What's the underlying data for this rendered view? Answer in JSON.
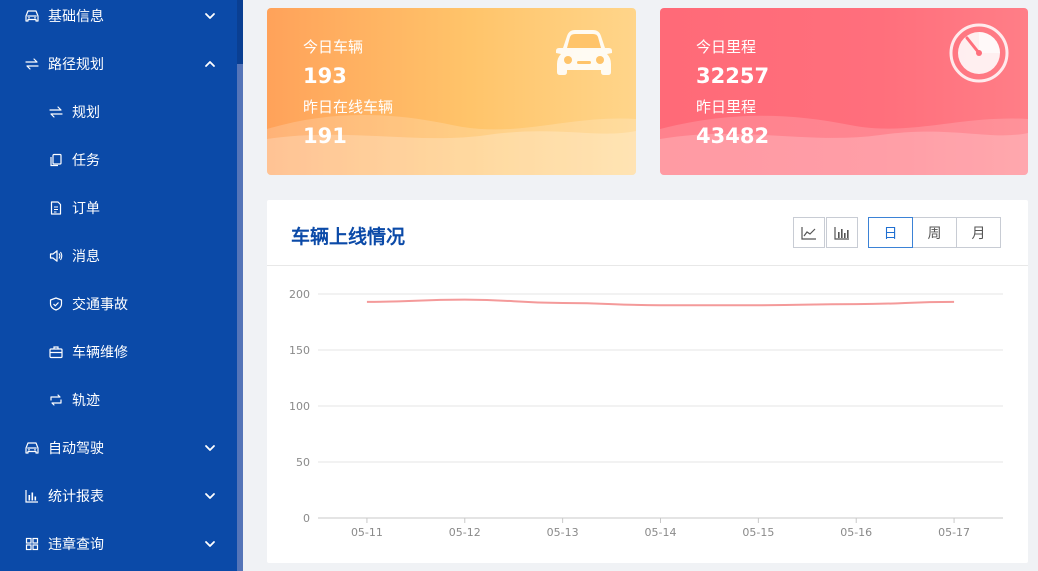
{
  "sidebar": {
    "items": [
      {
        "label": "基础信息",
        "icon": "car-icon",
        "level": 1,
        "chevron": "down"
      },
      {
        "label": "路径规划",
        "icon": "route-icon",
        "level": 1,
        "chevron": "up"
      },
      {
        "label": "规划",
        "icon": "route-icon",
        "level": 2
      },
      {
        "label": "任务",
        "icon": "copy-icon",
        "level": 2
      },
      {
        "label": "订单",
        "icon": "document-icon",
        "level": 2
      },
      {
        "label": "消息",
        "icon": "speaker-icon",
        "level": 2
      },
      {
        "label": "交通事故",
        "icon": "shield-icon",
        "level": 2
      },
      {
        "label": "车辆维修",
        "icon": "toolbox-icon",
        "level": 2
      },
      {
        "label": "轨迹",
        "icon": "loop-icon",
        "level": 2
      },
      {
        "label": "自动驾驶",
        "icon": "car-icon",
        "level": 1,
        "chevron": "down"
      },
      {
        "label": "统计报表",
        "icon": "bar-chart-icon",
        "level": 1,
        "chevron": "down"
      },
      {
        "label": "违章查询",
        "icon": "grid-icon",
        "level": 1,
        "chevron": "down"
      }
    ]
  },
  "cards": {
    "vehicles": {
      "today_label": "今日车辆",
      "today_value": "193",
      "yesterday_label": "昨日在线车辆",
      "yesterday_value": "191",
      "icon": "car-icon"
    },
    "mileage": {
      "today_label": "今日里程",
      "today_value": "32257",
      "yesterday_label": "昨日里程",
      "yesterday_value": "43482",
      "icon": "speedometer-icon"
    }
  },
  "panel": {
    "title": "车辆上线情况",
    "chart_type_buttons": [
      "line-chart-icon",
      "bar-chart-icon"
    ],
    "range_buttons": [
      {
        "label": "日",
        "active": true
      },
      {
        "label": "周",
        "active": false
      },
      {
        "label": "月",
        "active": false
      }
    ]
  },
  "colors": {
    "sidebar_bg": "#0b4aa8",
    "title": "#0b4aa8",
    "line": "#f49a9a",
    "active_button": "#1f6fd1"
  },
  "chart_data": {
    "type": "line",
    "x": [
      "05-11",
      "05-12",
      "05-13",
      "05-14",
      "05-15",
      "05-16",
      "05-17"
    ],
    "series": [
      {
        "values": [
          193,
          195,
          192,
          190,
          190,
          191,
          193
        ]
      }
    ],
    "ylim": [
      0,
      200
    ],
    "yticks": [
      0,
      50,
      100,
      150,
      200
    ],
    "grid": true,
    "smooth": true
  }
}
